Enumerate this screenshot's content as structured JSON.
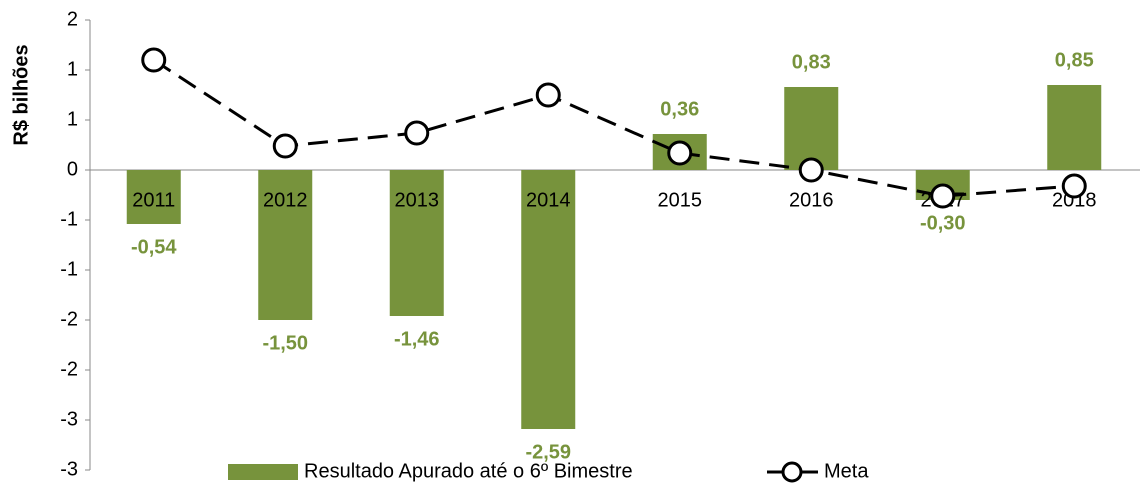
{
  "chart_data": {
    "type": "bar_line",
    "y_label": "R$ bilhões",
    "categories": [
      "2011",
      "2012",
      "2013",
      "2014",
      "2015",
      "2016",
      "2017",
      "2018"
    ],
    "series": [
      {
        "name": "Resultado Apurado até o 6º Bimestre",
        "type": "bar",
        "color": "#77933c",
        "values": [
          -0.54,
          -1.5,
          -1.46,
          -2.59,
          0.36,
          0.83,
          -0.3,
          0.85
        ],
        "value_labels": [
          "-0,54",
          "-1,50",
          "-1,46",
          "-2,59",
          "0,36",
          "0,83",
          "-0,30",
          "0,85"
        ]
      },
      {
        "name": "Meta",
        "type": "line",
        "color": "#000000",
        "values": [
          1.1,
          0.24,
          0.37,
          0.75,
          0.17,
          0.0,
          -0.26,
          -0.16
        ]
      }
    ],
    "ylim": [
      -3,
      1.5
    ],
    "yticks": [
      {
        "value": -3,
        "label": "-3"
      },
      {
        "value": -2.5,
        "label": "-3"
      },
      -2,
      {
        "value": -1.5,
        "label": "-2"
      },
      -1,
      {
        "value": -0.5,
        "label": "-1"
      },
      0,
      {
        "value": 0.5,
        "label": "1"
      },
      1,
      {
        "value": 1.5,
        "label": "2"
      }
    ],
    "legend": "bottom"
  }
}
